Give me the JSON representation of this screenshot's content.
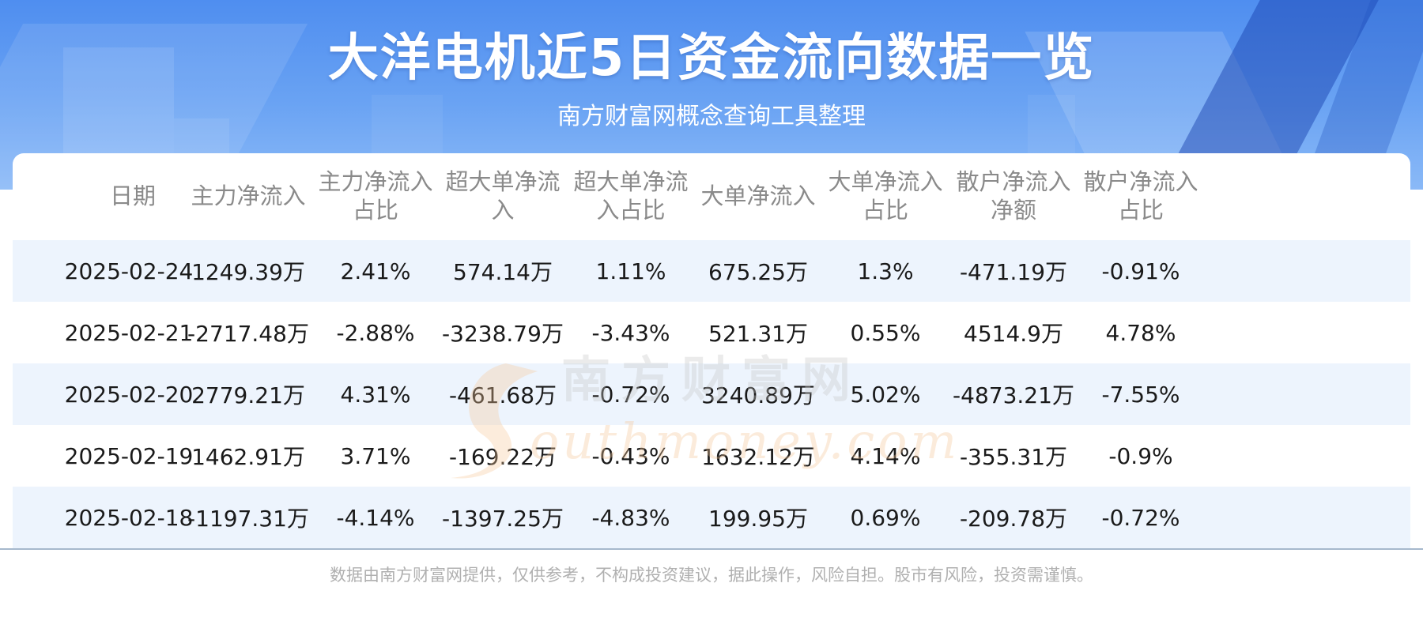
{
  "header": {
    "title": "大洋电机近5日资金流向数据一览",
    "subtitle": "南方财富网概念查询工具整理"
  },
  "table": {
    "columns": [
      [
        "日期"
      ],
      [
        "主力净流入"
      ],
      [
        "主力净流入",
        "占比"
      ],
      [
        "超大单净流",
        "入"
      ],
      [
        "超大单净流",
        "入占比"
      ],
      [
        "大单净流入"
      ],
      [
        "大单净流入",
        "占比"
      ],
      [
        "散户净流入",
        "净额"
      ],
      [
        "散户净流入",
        "占比"
      ]
    ],
    "rows": [
      [
        "2025-02-24",
        "1249.39万",
        "2.41%",
        "574.14万",
        "1.11%",
        "675.25万",
        "1.3%",
        "-471.19万",
        "-0.91%"
      ],
      [
        "2025-02-21",
        "-2717.48万",
        "-2.88%",
        "-3238.79万",
        "-3.43%",
        "521.31万",
        "0.55%",
        "4514.9万",
        "4.78%"
      ],
      [
        "2025-02-20",
        "2779.21万",
        "4.31%",
        "-461.68万",
        "-0.72%",
        "3240.89万",
        "5.02%",
        "-4873.21万",
        "-7.55%"
      ],
      [
        "2025-02-19",
        "1462.91万",
        "3.71%",
        "-169.22万",
        "-0.43%",
        "1632.12万",
        "4.14%",
        "-355.31万",
        "-0.9%"
      ],
      [
        "2025-02-18",
        "-1197.31万",
        "-4.14%",
        "-1397.25万",
        "-4.83%",
        "199.95万",
        "0.69%",
        "-209.78万",
        "-0.72%"
      ]
    ]
  },
  "watermark": {
    "cn": "南方财富网",
    "en": "southmoney.com"
  },
  "footer": {
    "disclaimer": "数据由南方财富网提供，仅供参考，不构成投资建议，据此操作，风险自担。股市有风险，投资需谨慎。"
  },
  "colors": {
    "banner": "#4f8ef0",
    "stripe": "#edf4fd",
    "header_text": "#8a8a8a",
    "body_text": "#1a1a1a",
    "footer_text": "#b0b0b0"
  }
}
